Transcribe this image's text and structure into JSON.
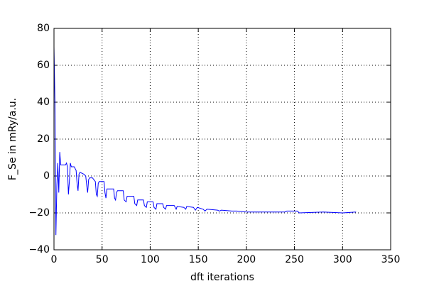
{
  "chart_data": {
    "type": "line",
    "xlabel": "dft iterations",
    "ylabel": "F_Se in mRy/a.u.",
    "x": [
      0,
      1,
      2,
      3,
      4,
      5,
      6,
      7,
      8,
      12,
      13,
      14,
      15,
      16,
      17,
      18,
      21,
      23,
      24,
      25,
      26,
      27,
      31,
      33,
      34,
      35,
      36,
      37,
      40,
      43,
      44,
      45,
      46,
      47,
      52,
      53,
      54,
      55,
      56,
      62,
      63,
      64,
      65,
      66,
      72,
      73,
      75,
      76,
      83,
      84,
      86,
      87,
      93,
      94,
      96,
      97,
      103,
      104,
      106,
      107,
      113,
      114,
      116,
      117,
      125,
      127,
      128,
      135,
      137,
      138,
      145,
      147,
      149,
      155,
      157,
      159,
      170,
      172,
      174,
      185,
      190,
      200,
      215,
      230,
      240,
      242,
      253,
      255,
      280,
      300,
      314
    ],
    "values": [
      70,
      40,
      -32,
      -5,
      7,
      -9,
      13,
      6,
      6,
      6,
      7,
      5,
      -10,
      -3,
      7,
      5,
      5,
      3,
      -4,
      -8,
      1,
      2,
      1,
      0,
      -5,
      -9,
      -2,
      -1,
      -1,
      -3,
      -10,
      -11,
      -4,
      -3,
      -3,
      -9,
      -12,
      -7,
      -7,
      -7,
      -12,
      -13,
      -9,
      -8,
      -8,
      -13,
      -14,
      -11,
      -11,
      -15,
      -16,
      -13,
      -13,
      -16,
      -17,
      -14,
      -14,
      -17,
      -18,
      -15,
      -15,
      -17,
      -18,
      -16,
      -16,
      -18,
      -16.5,
      -17,
      -18,
      -16.5,
      -17,
      -18.5,
      -17,
      -18,
      -19,
      -18,
      -18.5,
      -19,
      -18.5,
      -19,
      -19,
      -19.5,
      -19.5,
      -19.5,
      -19.5,
      -19,
      -19,
      -20,
      -19.5,
      -20,
      -19.5
    ],
    "color": "#0000ff",
    "xlim": [
      0,
      350
    ],
    "xticks": [
      0,
      50,
      100,
      150,
      200,
      250,
      300,
      350
    ],
    "ylim": [
      -40,
      80
    ],
    "yticks": [
      {
        "value": -40,
        "label": "−40"
      },
      {
        "value": -20,
        "label": "−20"
      },
      0,
      20,
      40,
      60,
      80
    ],
    "grid": true
  }
}
